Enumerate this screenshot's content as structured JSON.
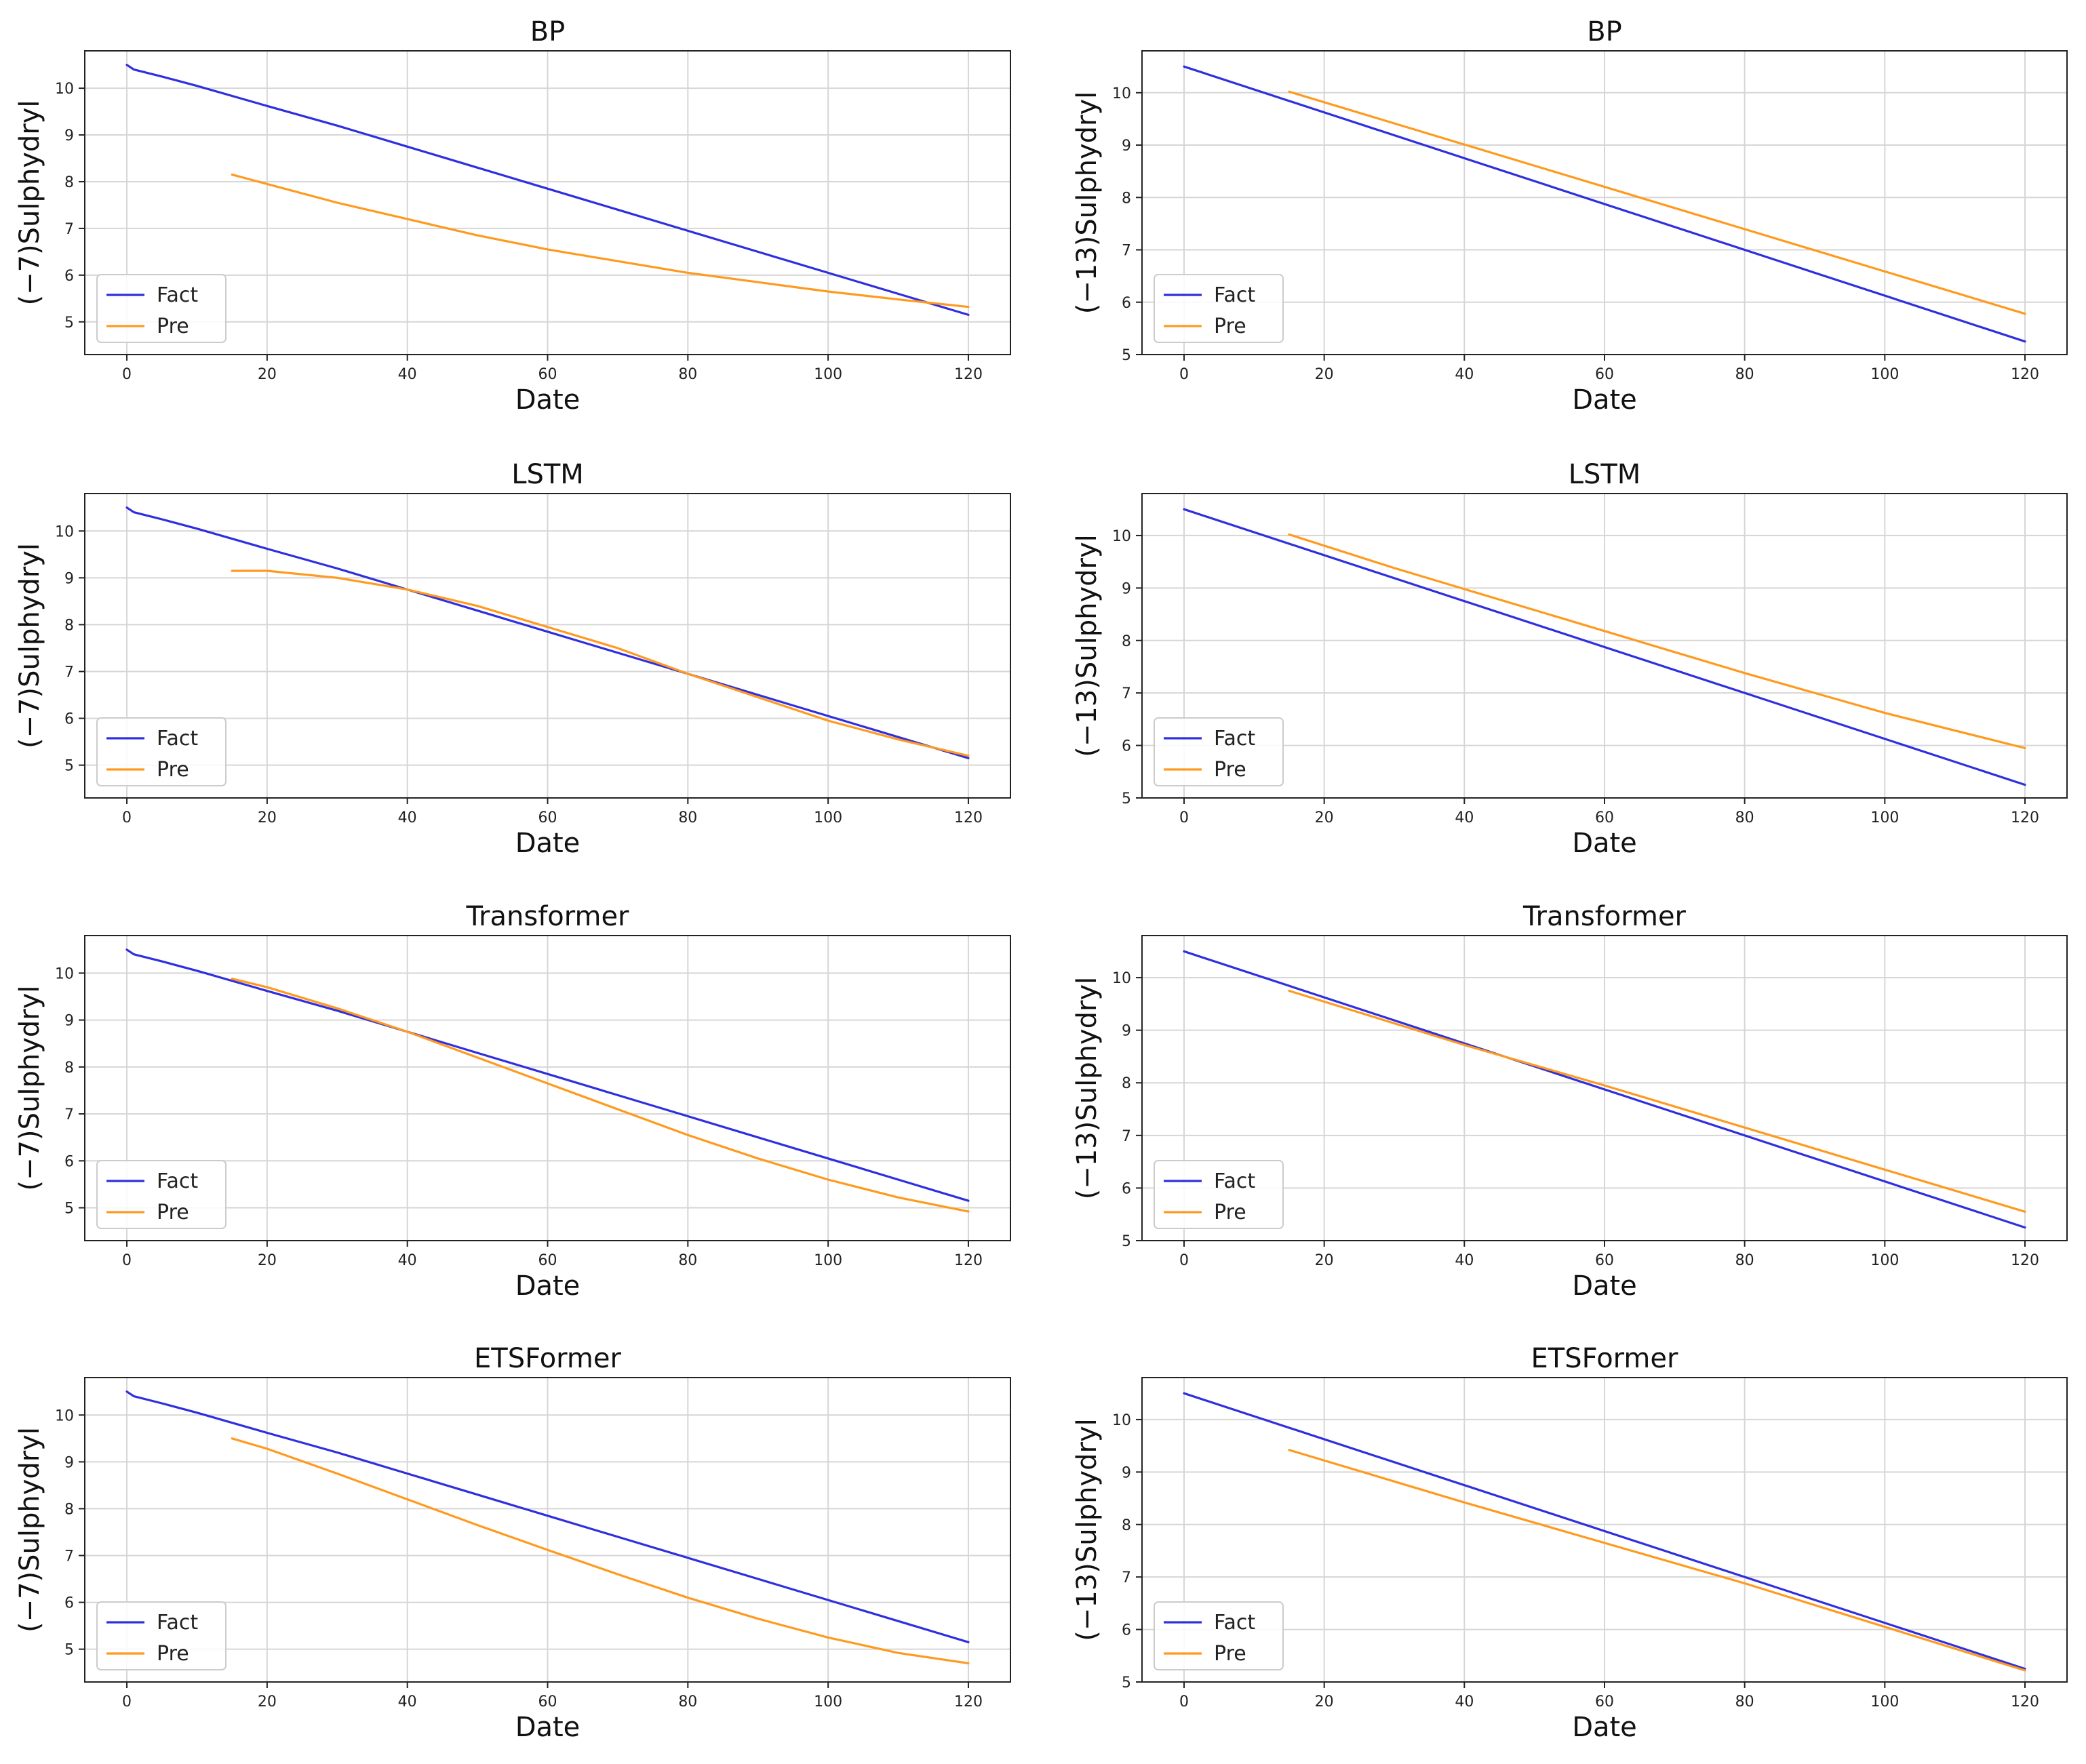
{
  "chart_data": [
    {
      "type": "line",
      "title": "BP",
      "xlabel": "Date",
      "ylabel": "(−7)Sulphydryl",
      "xlim": [
        -6,
        126
      ],
      "ylim": [
        4.3,
        10.8
      ],
      "xticks": [
        0,
        20,
        40,
        60,
        80,
        100,
        120
      ],
      "yticks": [
        5,
        6,
        7,
        8,
        9,
        10
      ],
      "grid": true,
      "legend": "lower-left",
      "series": [
        {
          "name": "Fact",
          "color": "#2f2fe0",
          "x": [
            0,
            1,
            5,
            10,
            20,
            30,
            40,
            50,
            60,
            70,
            80,
            90,
            100,
            110,
            120
          ],
          "y": [
            10.5,
            10.4,
            10.25,
            10.05,
            9.62,
            9.2,
            8.75,
            8.3,
            7.85,
            7.4,
            6.95,
            6.5,
            6.05,
            5.6,
            5.15
          ]
        },
        {
          "name": "Pre",
          "color": "#ff9a1f",
          "x": [
            15,
            20,
            30,
            40,
            50,
            60,
            70,
            80,
            90,
            100,
            110,
            120
          ],
          "y": [
            8.15,
            7.95,
            7.55,
            7.2,
            6.85,
            6.55,
            6.3,
            6.05,
            5.85,
            5.65,
            5.48,
            5.32
          ]
        }
      ]
    },
    {
      "type": "line",
      "title": "BP",
      "xlabel": "Date",
      "ylabel": "(−13)Sulphydryl",
      "xlim": [
        -6,
        126
      ],
      "ylim": [
        5.0,
        10.8
      ],
      "xticks": [
        0,
        20,
        40,
        60,
        80,
        100,
        120
      ],
      "yticks": [
        5,
        6,
        7,
        8,
        9,
        10
      ],
      "grid": true,
      "legend": "lower-left",
      "series": [
        {
          "name": "Fact",
          "color": "#2f2fe0",
          "x": [
            0,
            120
          ],
          "y": [
            10.5,
            5.25
          ]
        },
        {
          "name": "Pre",
          "color": "#ff9a1f",
          "x": [
            15,
            120
          ],
          "y": [
            10.02,
            5.78
          ]
        }
      ]
    },
    {
      "type": "line",
      "title": "LSTM",
      "xlabel": "Date",
      "ylabel": "(−7)Sulphydryl",
      "xlim": [
        -6,
        126
      ],
      "ylim": [
        4.3,
        10.8
      ],
      "xticks": [
        0,
        20,
        40,
        60,
        80,
        100,
        120
      ],
      "yticks": [
        5,
        6,
        7,
        8,
        9,
        10
      ],
      "grid": true,
      "legend": "lower-left",
      "series": [
        {
          "name": "Fact",
          "color": "#2f2fe0",
          "x": [
            0,
            1,
            5,
            10,
            20,
            30,
            40,
            50,
            60,
            70,
            80,
            90,
            100,
            110,
            120
          ],
          "y": [
            10.5,
            10.4,
            10.25,
            10.05,
            9.62,
            9.2,
            8.75,
            8.3,
            7.85,
            7.4,
            6.95,
            6.5,
            6.05,
            5.6,
            5.15
          ]
        },
        {
          "name": "Pre",
          "color": "#ff9a1f",
          "x": [
            15,
            20,
            30,
            40,
            50,
            60,
            70,
            80,
            90,
            100,
            110,
            120
          ],
          "y": [
            9.15,
            9.15,
            9.0,
            8.75,
            8.4,
            7.95,
            7.5,
            6.95,
            6.45,
            5.95,
            5.55,
            5.2
          ]
        }
      ]
    },
    {
      "type": "line",
      "title": "LSTM",
      "xlabel": "Date",
      "ylabel": "(−13)Sulphydryl",
      "xlim": [
        -6,
        126
      ],
      "ylim": [
        5.0,
        10.8
      ],
      "xticks": [
        0,
        20,
        40,
        60,
        80,
        100,
        120
      ],
      "yticks": [
        5,
        6,
        7,
        8,
        9,
        10
      ],
      "grid": true,
      "legend": "lower-left",
      "series": [
        {
          "name": "Fact",
          "color": "#2f2fe0",
          "x": [
            0,
            120
          ],
          "y": [
            10.5,
            5.25
          ]
        },
        {
          "name": "Pre",
          "color": "#ff9a1f",
          "x": [
            15,
            30,
            40,
            60,
            80,
            100,
            120
          ],
          "y": [
            10.02,
            9.38,
            8.98,
            8.18,
            7.38,
            6.62,
            5.95
          ]
        }
      ]
    },
    {
      "type": "line",
      "title": "Transformer",
      "xlabel": "Date",
      "ylabel": "(−7)Sulphydryl",
      "xlim": [
        -6,
        126
      ],
      "ylim": [
        4.3,
        10.8
      ],
      "xticks": [
        0,
        20,
        40,
        60,
        80,
        100,
        120
      ],
      "yticks": [
        5,
        6,
        7,
        8,
        9,
        10
      ],
      "grid": true,
      "legend": "lower-left",
      "series": [
        {
          "name": "Fact",
          "color": "#2f2fe0",
          "x": [
            0,
            1,
            5,
            10,
            20,
            30,
            40,
            50,
            60,
            70,
            80,
            90,
            100,
            110,
            120
          ],
          "y": [
            10.5,
            10.4,
            10.25,
            10.05,
            9.62,
            9.2,
            8.75,
            8.3,
            7.85,
            7.4,
            6.95,
            6.5,
            6.05,
            5.6,
            5.15
          ]
        },
        {
          "name": "Pre",
          "color": "#ff9a1f",
          "x": [
            15,
            20,
            30,
            40,
            50,
            60,
            70,
            80,
            90,
            100,
            110,
            120
          ],
          "y": [
            9.88,
            9.7,
            9.25,
            8.75,
            8.2,
            7.65,
            7.1,
            6.55,
            6.05,
            5.6,
            5.22,
            4.92
          ]
        }
      ]
    },
    {
      "type": "line",
      "title": "Transformer",
      "xlabel": "Date",
      "ylabel": "(−13)Sulphydryl",
      "xlim": [
        -6,
        126
      ],
      "ylim": [
        5.0,
        10.8
      ],
      "xticks": [
        0,
        20,
        40,
        60,
        80,
        100,
        120
      ],
      "yticks": [
        5,
        6,
        7,
        8,
        9,
        10
      ],
      "grid": true,
      "legend": "lower-left",
      "series": [
        {
          "name": "Fact",
          "color": "#2f2fe0",
          "x": [
            0,
            120
          ],
          "y": [
            10.5,
            5.25
          ]
        },
        {
          "name": "Pre",
          "color": "#ff9a1f",
          "x": [
            15,
            40,
            60,
            80,
            100,
            120
          ],
          "y": [
            9.75,
            8.72,
            7.95,
            7.15,
            6.35,
            5.55
          ]
        }
      ]
    },
    {
      "type": "line",
      "title": "ETSFormer",
      "xlabel": "Date",
      "ylabel": "(−7)Sulphydryl",
      "xlim": [
        -6,
        126
      ],
      "ylim": [
        4.3,
        10.8
      ],
      "xticks": [
        0,
        20,
        40,
        60,
        80,
        100,
        120
      ],
      "yticks": [
        5,
        6,
        7,
        8,
        9,
        10
      ],
      "grid": true,
      "legend": "lower-left",
      "series": [
        {
          "name": "Fact",
          "color": "#2f2fe0",
          "x": [
            0,
            1,
            5,
            10,
            20,
            30,
            40,
            50,
            60,
            70,
            80,
            90,
            100,
            110,
            120
          ],
          "y": [
            10.5,
            10.4,
            10.25,
            10.05,
            9.62,
            9.2,
            8.75,
            8.3,
            7.85,
            7.4,
            6.95,
            6.5,
            6.05,
            5.6,
            5.15
          ]
        },
        {
          "name": "Pre",
          "color": "#ff9a1f",
          "x": [
            15,
            20,
            30,
            40,
            50,
            60,
            70,
            80,
            90,
            100,
            110,
            120
          ],
          "y": [
            9.5,
            9.28,
            8.75,
            8.2,
            7.65,
            7.12,
            6.6,
            6.1,
            5.65,
            5.25,
            4.92,
            4.7
          ]
        }
      ]
    },
    {
      "type": "line",
      "title": "ETSFormer",
      "xlabel": "Date",
      "ylabel": "(−13)Sulphydryl",
      "xlim": [
        -6,
        126
      ],
      "ylim": [
        5.0,
        10.8
      ],
      "xticks": [
        0,
        20,
        40,
        60,
        80,
        100,
        120
      ],
      "yticks": [
        5,
        6,
        7,
        8,
        9,
        10
      ],
      "grid": true,
      "legend": "lower-left",
      "series": [
        {
          "name": "Fact",
          "color": "#2f2fe0",
          "x": [
            0,
            120
          ],
          "y": [
            10.5,
            5.25
          ]
        },
        {
          "name": "Pre",
          "color": "#ff9a1f",
          "x": [
            15,
            40,
            60,
            80,
            100,
            120
          ],
          "y": [
            9.42,
            8.42,
            7.65,
            6.88,
            6.05,
            5.22
          ]
        }
      ]
    }
  ]
}
